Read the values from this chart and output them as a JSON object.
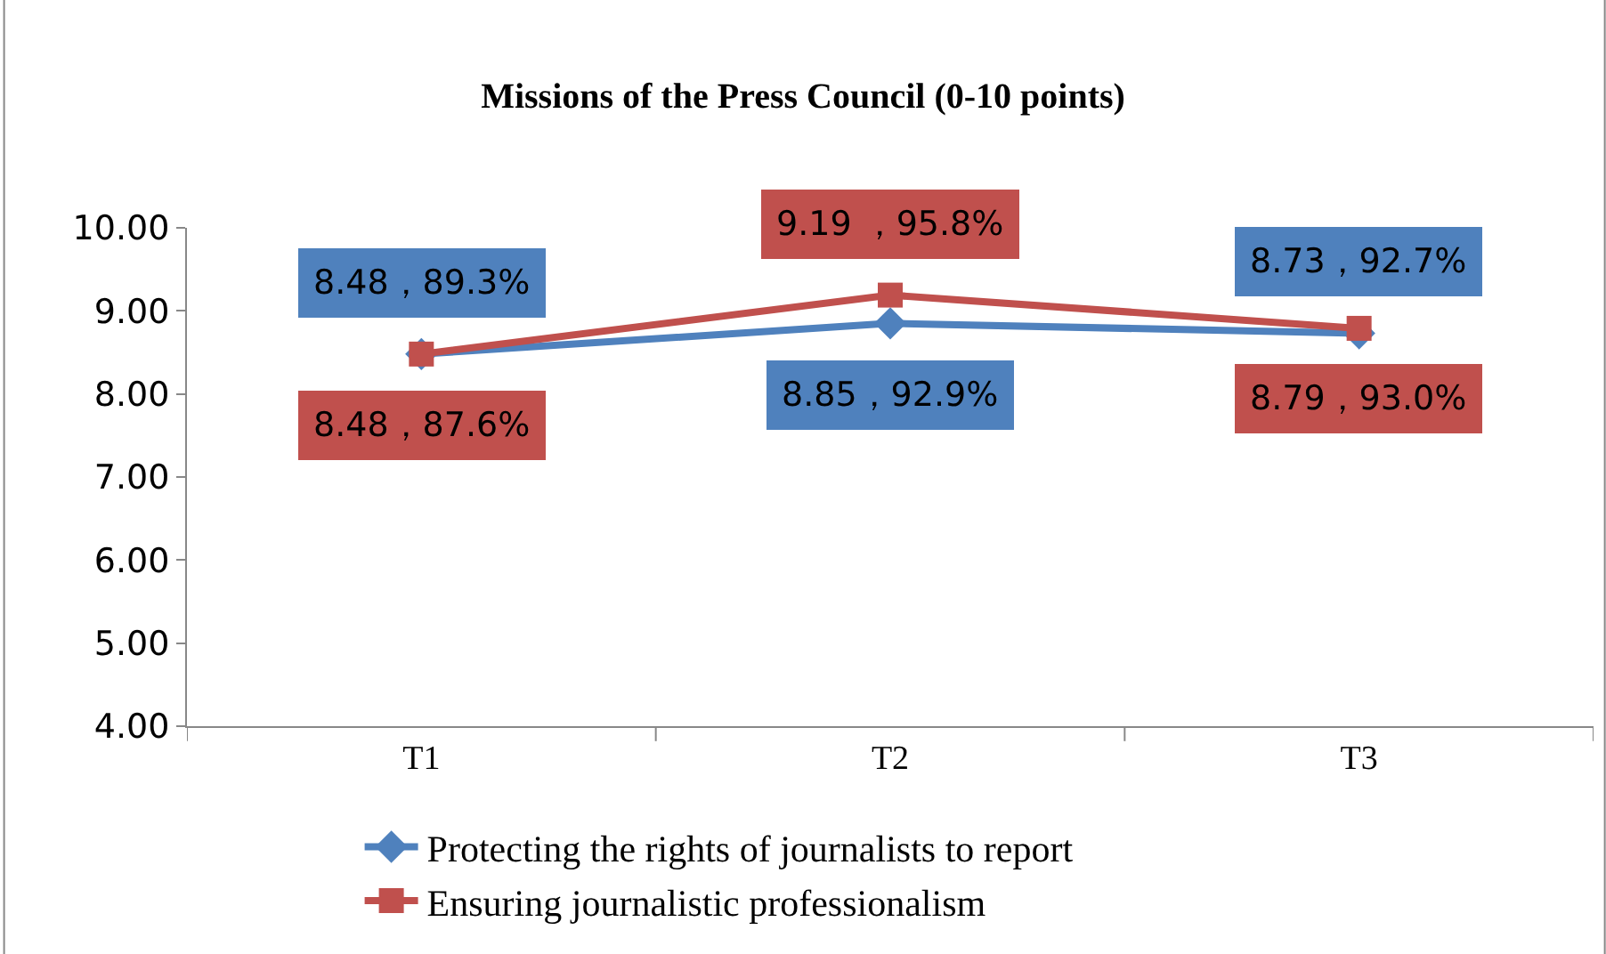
{
  "chart_data": {
    "type": "line",
    "title": "Missions of the Press Council (0-10 points)",
    "categories": [
      "T1",
      "T2",
      "T3"
    ],
    "series": [
      {
        "name": "Protecting the rights of journalists to report",
        "color": "#4f81bd",
        "values": [
          8.48,
          8.85,
          8.73
        ],
        "marker": "diamond",
        "value_labels": [
          "8.48，89.3%",
          "8.85，92.9%",
          "8.73，92.7%"
        ]
      },
      {
        "name": "Ensuring journalistic professionalism",
        "color": "#c0504d",
        "values": [
          8.48,
          9.19,
          8.79
        ],
        "marker": "square",
        "value_labels": [
          "8.48，87.6%",
          "9.19 ，95.8%",
          "8.79，93.0%"
        ]
      }
    ],
    "ylim": [
      4,
      10
    ],
    "yticks": [
      {
        "value": 4,
        "label": "4.00"
      },
      {
        "value": 5,
        "label": "5.00"
      },
      {
        "value": 6,
        "label": "6.00"
      },
      {
        "value": 7,
        "label": "7.00"
      },
      {
        "value": 8,
        "label": "8.00"
      },
      {
        "value": 9,
        "label": "9.00"
      },
      {
        "value": 10,
        "label": "10.00"
      }
    ],
    "legend": "bottom",
    "line_style": "solid"
  }
}
